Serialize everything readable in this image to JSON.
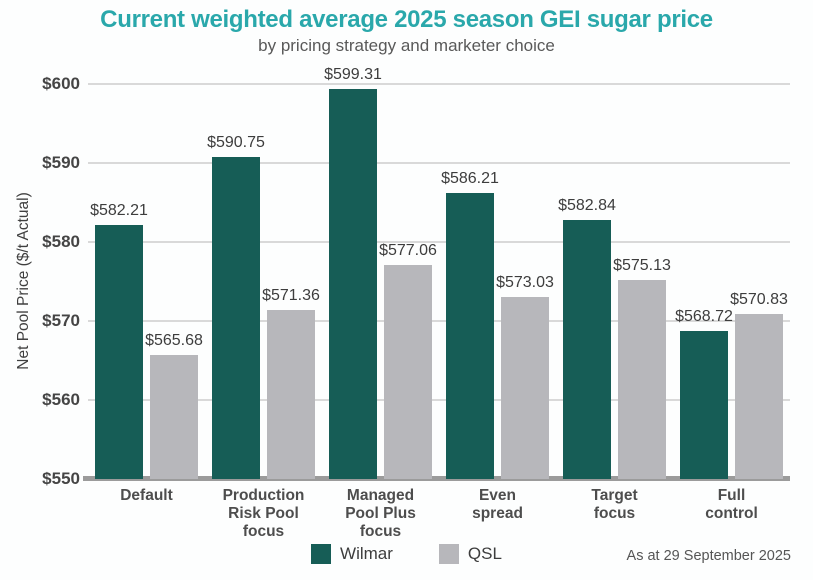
{
  "header": {
    "title": "Current weighted average 2025 season GEI sugar price",
    "subtitle": "by pricing strategy and marketer choice"
  },
  "footer": {
    "as_at": "As at 29 September 2025"
  },
  "colors": {
    "title_accent": "#2aa8ab",
    "wilmar": "#165d56",
    "qsl": "#b7b7bb",
    "gridline": "#d9d9d9",
    "baseline": "#9b9b9b"
  },
  "chart_data": {
    "type": "bar",
    "title": "Current weighted average 2025 season GEI sugar price",
    "subtitle": "by pricing strategy and marketer choice",
    "categories": [
      "Default",
      "Production\nRisk Pool\nfocus",
      "Managed\nPool Plus\nfocus",
      "Even\nspread",
      "Target\nfocus",
      "Full control"
    ],
    "series": [
      {
        "name": "Wilmar",
        "color": "#165d56",
        "values": [
          582.21,
          590.75,
          599.31,
          586.21,
          582.84,
          568.72
        ]
      },
      {
        "name": "QSL",
        "color": "#b7b7bb",
        "values": [
          565.68,
          571.36,
          577.06,
          573.03,
          575.13,
          570.83
        ]
      }
    ],
    "value_label_prefix": "$",
    "xlabel": "",
    "ylabel": "Net Pool Price ($/t Actual)",
    "ylim": [
      550,
      600
    ],
    "yticks": [
      550,
      560,
      570,
      580,
      590,
      600
    ],
    "ytick_labels": [
      "$550",
      "$560",
      "$570",
      "$580",
      "$590",
      "$600"
    ],
    "grid": true,
    "legend_position": "bottom",
    "note": "As at 29 September 2025"
  }
}
